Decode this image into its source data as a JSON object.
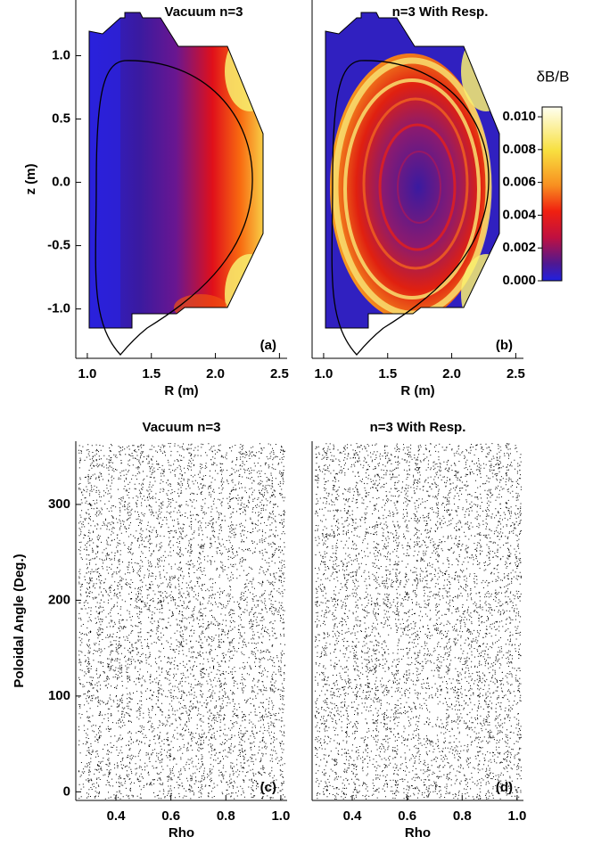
{
  "panels": [
    {
      "title": "Vacuum n=3",
      "label": "(a)",
      "xlabel": "R (m)",
      "ylabel": "z (m)",
      "xlim": [
        0.91,
        2.56
      ],
      "ylim": [
        -1.39,
        1.44
      ],
      "xticks": [
        {
          "value": 1,
          "label": "1.0"
        },
        {
          "value": 1.5,
          "label": "1.5"
        },
        {
          "value": 2,
          "label": "2.0"
        },
        {
          "value": 2.5,
          "label": "2.5"
        }
      ],
      "yticks": [
        {
          "value": -1,
          "label": "-1.0"
        },
        {
          "value": -0.5,
          "label": "-0.5"
        },
        {
          "value": 0,
          "label": "0.0"
        },
        {
          "value": 0.5,
          "label": "0.5"
        },
        {
          "value": 1,
          "label": "1.0"
        }
      ]
    },
    {
      "title": "n=3 With Resp.",
      "label": "(b)",
      "xlabel": "R (m)",
      "xlim": [
        0.91,
        2.56
      ],
      "ylim": [
        -1.39,
        1.44
      ],
      "xticks": [
        {
          "value": 1,
          "label": "1.0"
        },
        {
          "value": 1.5,
          "label": "1.5"
        },
        {
          "value": 2,
          "label": "2.0"
        },
        {
          "value": 2.5,
          "label": "2.5"
        }
      ]
    },
    {
      "title": "Vacuum n=3",
      "label": "(c)",
      "xlabel": "Rho",
      "ylabel": "Poloidal Angle (Deg.)",
      "xlim": [
        0.254,
        1.023
      ],
      "ylim": [
        -9,
        366
      ],
      "xticks": [
        {
          "value": 0.4,
          "label": "0.4"
        },
        {
          "value": 0.6,
          "label": "0.6"
        },
        {
          "value": 0.8,
          "label": "0.8"
        },
        {
          "value": 1,
          "label": "1.0"
        }
      ],
      "yticks": [
        0,
        100,
        200,
        300
      ]
    },
    {
      "title": "n=3 With Resp.",
      "label": "(d)",
      "xlabel": "Rho",
      "xlim": [
        0.254,
        1.023
      ],
      "ylim": [
        -9,
        366
      ],
      "xticks": [
        {
          "value": 0.4,
          "label": "0.4"
        },
        {
          "value": 0.6,
          "label": "0.6"
        },
        {
          "value": 0.8,
          "label": "0.8"
        },
        {
          "value": 1,
          "label": "1.0"
        }
      ]
    }
  ],
  "colorbar": {
    "title": "δB/B",
    "lim": [
      0,
      0.0106
    ],
    "ticks": [
      {
        "value": 0,
        "label": "0.000"
      },
      {
        "value": 0.002,
        "label": "0.002"
      },
      {
        "value": 0.004,
        "label": "0.004"
      },
      {
        "value": 0.006,
        "label": "0.006"
      },
      {
        "value": 0.008,
        "label": "0.008"
      },
      {
        "value": 0.01,
        "label": "0.010"
      }
    ]
  }
}
